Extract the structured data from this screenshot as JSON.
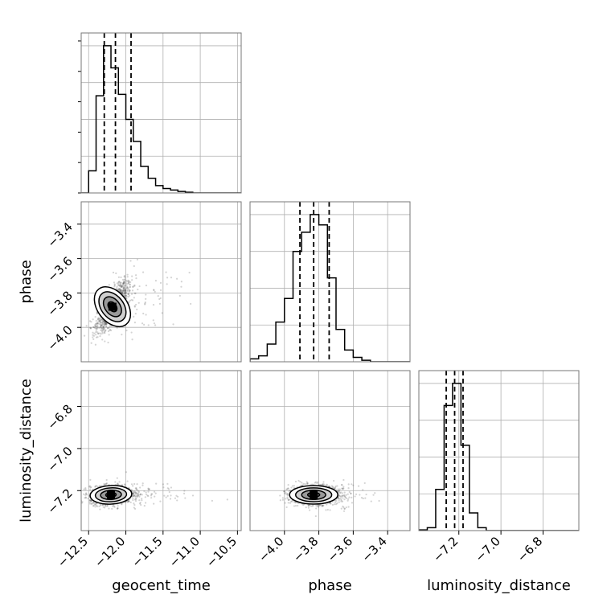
{
  "chart_data": {
    "type": "corner",
    "grid": true,
    "parameters": [
      "geocent_time",
      "phase",
      "luminosity_distance"
    ],
    "ranges": {
      "geocent_time": [
        -12.6,
        -10.45
      ],
      "phase": [
        -4.2,
        -3.27
      ],
      "luminosity_distance": [
        -7.39,
        -6.63
      ]
    },
    "ticks": {
      "geocent_time": [
        -12.5,
        -12.0,
        -11.5,
        -11.0,
        -10.5
      ],
      "phase": [
        -4.0,
        -3.8,
        -3.6,
        -3.4
      ],
      "luminosity_distance": [
        -7.2,
        -7.0,
        -6.8
      ]
    },
    "tick_labels": {
      "geocent_time": [
        "−12.5",
        "−12.0",
        "−11.5",
        "−11.0",
        "−10.5"
      ],
      "phase": [
        "−4.0",
        "−3.8",
        "−3.6",
        "−3.4"
      ],
      "luminosity_distance": [
        "−7.2",
        "−7.0",
        "−6.8"
      ]
    },
    "quantiles": {
      "geocent_time": [
        -12.29,
        -12.14,
        -11.93
      ],
      "phase": [
        -3.91,
        -3.83,
        -3.74
      ],
      "luminosity_distance": [
        -7.26,
        -7.22,
        -7.18
      ]
    },
    "histograms": {
      "geocent_time": {
        "bins": [
          -12.6,
          -12.5,
          -12.4,
          -12.3,
          -12.2,
          -12.1,
          -12.0,
          -11.9,
          -11.8,
          -11.7,
          -11.6,
          -11.5,
          -11.4,
          -11.3,
          -11.2,
          -11.1,
          -11.0,
          -10.9,
          -10.8,
          -10.7,
          -10.6,
          -10.45
        ],
        "counts": [
          0,
          0.15,
          0.66,
          1.0,
          0.85,
          0.67,
          0.5,
          0.35,
          0.18,
          0.1,
          0.05,
          0.03,
          0.02,
          0.01,
          0.005,
          0,
          0,
          0,
          0,
          0,
          0
        ]
      },
      "phase": {
        "bins": [
          -4.2,
          -4.15,
          -4.1,
          -4.05,
          -4.0,
          -3.95,
          -3.9,
          -3.85,
          -3.8,
          -3.75,
          -3.7,
          -3.65,
          -3.6,
          -3.55,
          -3.5,
          -3.45,
          -3.4,
          -3.35,
          -3.27
        ],
        "counts": [
          0.02,
          0.04,
          0.12,
          0.27,
          0.43,
          0.75,
          0.88,
          1.0,
          0.93,
          0.57,
          0.22,
          0.08,
          0.03,
          0.01,
          0,
          0,
          0,
          0
        ]
      },
      "luminosity_distance": {
        "bins": [
          -7.39,
          -7.35,
          -7.31,
          -7.27,
          -7.23,
          -7.19,
          -7.15,
          -7.11,
          -7.07,
          -7.03,
          -6.99,
          -6.95,
          -6.91,
          -6.87,
          -6.83,
          -6.79,
          -6.75,
          -6.71,
          -6.63
        ],
        "counts": [
          0.005,
          0.02,
          0.28,
          0.85,
          1.0,
          0.58,
          0.12,
          0.02,
          0,
          0,
          0,
          0,
          0,
          0,
          0,
          0,
          0,
          0
        ]
      }
    },
    "joint": [
      {
        "x": "geocent_time",
        "y": "phase",
        "mean": [
          -12.18,
          -3.88
        ],
        "sd": [
          0.1,
          0.065
        ],
        "rho": 0.72,
        "tail": {
          "spread": [
            0.35,
            0.1
          ],
          "rho": 0.5
        }
      },
      {
        "x": "geocent_time",
        "y": "luminosity_distance",
        "mean": [
          -12.2,
          -7.22
        ],
        "sd": [
          0.14,
          0.022
        ],
        "rho": 0.15,
        "tail": {
          "spread": [
            0.4,
            0.03
          ],
          "rho": 0.1
        }
      },
      {
        "x": "phase",
        "y": "luminosity_distance",
        "mean": [
          -3.83,
          -7.22
        ],
        "sd": [
          0.07,
          0.022
        ],
        "rho": 0.0,
        "tail": {
          "spread": [
            0.12,
            0.03
          ],
          "rho": 0.0
        }
      }
    ],
    "contour_levels": [
      0.5,
      1.0,
      1.5,
      2.0
    ],
    "colors": {
      "line": "#000000",
      "sample": "#555555",
      "grid": "#b0b0b0",
      "fill": "#808080"
    }
  }
}
